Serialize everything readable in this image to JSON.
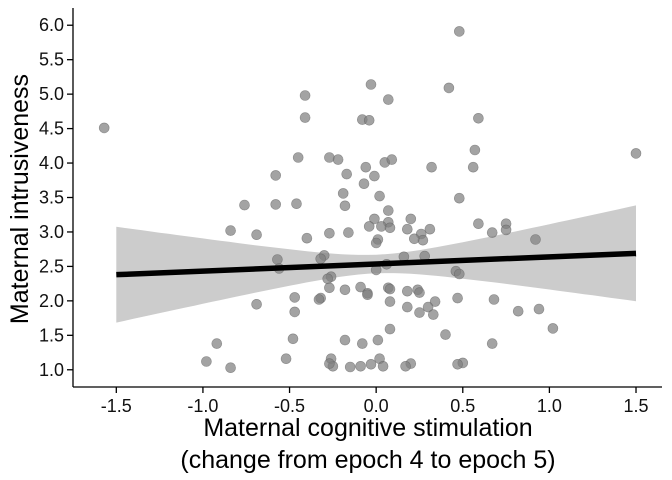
{
  "chart_data": {
    "type": "scatter",
    "xlabel_line1": "Maternal cognitive stimulation",
    "xlabel_line2": "(change from epoch 4 to epoch 5)",
    "ylabel": "Maternal intrusiveness",
    "xlim": [
      -1.75,
      1.65
    ],
    "ylim": [
      0.75,
      6.25
    ],
    "x_ticks": [
      -1.5,
      -1.0,
      -0.5,
      0.0,
      0.5,
      1.0,
      1.5
    ],
    "x_tick_labels": [
      "-1.5",
      "-1.0",
      "-0.5",
      "0.0",
      "0.5",
      "1.0",
      "1.5"
    ],
    "y_ticks": [
      1.0,
      1.5,
      2.0,
      2.5,
      3.0,
      3.5,
      4.0,
      4.5,
      5.0,
      5.5,
      6.0
    ],
    "y_tick_labels": [
      "1.0",
      "1.5",
      "2.0",
      "2.5",
      "3.0",
      "3.5",
      "4.0",
      "4.5",
      "5.0",
      "5.5",
      "6.0"
    ],
    "grid": false,
    "point_color": "#7f7f7f",
    "line_color": "#000000",
    "band_color": "#cccccc",
    "regression": {
      "x": [
        -1.5,
        1.5
      ],
      "y": [
        2.38,
        2.69
      ],
      "ci_lower": [
        1.69,
        1.99
      ],
      "ci_upper": [
        3.08,
        3.39
      ],
      "ci_mid_x": 0.0,
      "ci_mid_lower": [
        2.41
      ],
      "ci_mid_upper": [
        2.68
      ]
    },
    "points": [
      {
        "x": -1.57,
        "y": 4.51
      },
      {
        "x": 1.5,
        "y": 4.14
      },
      {
        "x": 0.48,
        "y": 5.91
      },
      {
        "x": -0.03,
        "y": 5.14
      },
      {
        "x": 0.42,
        "y": 5.09
      },
      {
        "x": -0.41,
        "y": 4.98
      },
      {
        "x": 0.07,
        "y": 4.92
      },
      {
        "x": -0.41,
        "y": 4.66
      },
      {
        "x": -0.08,
        "y": 4.63
      },
      {
        "x": -0.04,
        "y": 4.62
      },
      {
        "x": 0.59,
        "y": 4.65
      },
      {
        "x": 0.57,
        "y": 4.19
      },
      {
        "x": -0.45,
        "y": 4.08
      },
      {
        "x": -0.27,
        "y": 4.08
      },
      {
        "x": -0.22,
        "y": 4.05
      },
      {
        "x": 0.05,
        "y": 4.01
      },
      {
        "x": 0.09,
        "y": 4.05
      },
      {
        "x": -0.06,
        "y": 3.94
      },
      {
        "x": 0.32,
        "y": 3.94
      },
      {
        "x": 0.56,
        "y": 3.94
      },
      {
        "x": -0.17,
        "y": 3.84
      },
      {
        "x": -0.58,
        "y": 3.82
      },
      {
        "x": -0.01,
        "y": 3.81
      },
      {
        "x": -0.07,
        "y": 3.7
      },
      {
        "x": -0.19,
        "y": 3.56
      },
      {
        "x": 0.02,
        "y": 3.52
      },
      {
        "x": 0.48,
        "y": 3.49
      },
      {
        "x": -0.76,
        "y": 3.39
      },
      {
        "x": -0.58,
        "y": 3.4
      },
      {
        "x": -0.46,
        "y": 3.41
      },
      {
        "x": -0.18,
        "y": 3.38
      },
      {
        "x": 0.07,
        "y": 3.31
      },
      {
        "x": -0.01,
        "y": 3.19
      },
      {
        "x": 0.2,
        "y": 3.19
      },
      {
        "x": 0.07,
        "y": 3.14
      },
      {
        "x": 0.03,
        "y": 3.08
      },
      {
        "x": -0.04,
        "y": 3.08
      },
      {
        "x": 0.08,
        "y": 3.06
      },
      {
        "x": 0.18,
        "y": 3.04
      },
      {
        "x": 0.31,
        "y": 3.04
      },
      {
        "x": 0.26,
        "y": 2.97
      },
      {
        "x": 0.59,
        "y": 3.12
      },
      {
        "x": 0.75,
        "y": 3.12
      },
      {
        "x": 0.75,
        "y": 3.03
      },
      {
        "x": 0.67,
        "y": 2.99
      },
      {
        "x": -0.84,
        "y": 3.02
      },
      {
        "x": -0.27,
        "y": 2.98
      },
      {
        "x": -0.16,
        "y": 2.99
      },
      {
        "x": -0.4,
        "y": 2.91
      },
      {
        "x": -0.69,
        "y": 2.96
      },
      {
        "x": 0.01,
        "y": 2.89
      },
      {
        "x": 0.0,
        "y": 2.84
      },
      {
        "x": 0.27,
        "y": 2.88
      },
      {
        "x": 0.22,
        "y": 2.9
      },
      {
        "x": 0.92,
        "y": 2.89
      },
      {
        "x": -0.3,
        "y": 2.66
      },
      {
        "x": -0.32,
        "y": 2.61
      },
      {
        "x": -0.57,
        "y": 2.6
      },
      {
        "x": -0.56,
        "y": 2.47
      },
      {
        "x": 0.06,
        "y": 2.53
      },
      {
        "x": 0.16,
        "y": 2.64
      },
      {
        "x": 0.28,
        "y": 2.65
      },
      {
        "x": 0.0,
        "y": 2.45
      },
      {
        "x": 0.46,
        "y": 2.43
      },
      {
        "x": 0.48,
        "y": 2.39
      },
      {
        "x": -0.26,
        "y": 2.35
      },
      {
        "x": -0.28,
        "y": 2.32
      },
      {
        "x": -0.09,
        "y": 2.2
      },
      {
        "x": -0.05,
        "y": 2.11
      },
      {
        "x": -0.18,
        "y": 2.16
      },
      {
        "x": -0.27,
        "y": 2.19
      },
      {
        "x": 0.07,
        "y": 2.19
      },
      {
        "x": 0.08,
        "y": 2.17
      },
      {
        "x": 0.18,
        "y": 2.14
      },
      {
        "x": 0.24,
        "y": 2.16
      },
      {
        "x": 0.25,
        "y": 2.12
      },
      {
        "x": 0.47,
        "y": 2.04
      },
      {
        "x": 0.68,
        "y": 2.02
      },
      {
        "x": 0.34,
        "y": 1.99
      },
      {
        "x": 0.3,
        "y": 1.91
      },
      {
        "x": 0.18,
        "y": 1.91
      },
      {
        "x": 0.08,
        "y": 1.99
      },
      {
        "x": -0.05,
        "y": 2.09
      },
      {
        "x": -0.32,
        "y": 2.04
      },
      {
        "x": -0.33,
        "y": 2.02
      },
      {
        "x": -0.47,
        "y": 2.05
      },
      {
        "x": -0.69,
        "y": 1.95
      },
      {
        "x": -0.47,
        "y": 1.84
      },
      {
        "x": 0.25,
        "y": 1.83
      },
      {
        "x": 0.33,
        "y": 1.8
      },
      {
        "x": 0.82,
        "y": 1.85
      },
      {
        "x": 0.94,
        "y": 1.88
      },
      {
        "x": 1.02,
        "y": 1.6
      },
      {
        "x": 0.08,
        "y": 1.59
      },
      {
        "x": 0.4,
        "y": 1.51
      },
      {
        "x": -0.48,
        "y": 1.45
      },
      {
        "x": -0.18,
        "y": 1.43
      },
      {
        "x": 0.01,
        "y": 1.43
      },
      {
        "x": -0.08,
        "y": 1.38
      },
      {
        "x": -0.92,
        "y": 1.38
      },
      {
        "x": 0.67,
        "y": 1.38
      },
      {
        "x": -0.52,
        "y": 1.16
      },
      {
        "x": -0.26,
        "y": 1.16
      },
      {
        "x": -0.98,
        "y": 1.12
      },
      {
        "x": 0.2,
        "y": 1.09
      },
      {
        "x": 0.02,
        "y": 1.16
      },
      {
        "x": -0.03,
        "y": 1.08
      },
      {
        "x": 0.04,
        "y": 1.05
      },
      {
        "x": -0.09,
        "y": 1.05
      },
      {
        "x": -0.15,
        "y": 1.04
      },
      {
        "x": -0.25,
        "y": 1.05
      },
      {
        "x": -0.27,
        "y": 1.09
      },
      {
        "x": 0.17,
        "y": 1.05
      },
      {
        "x": 0.5,
        "y": 1.1
      },
      {
        "x": 0.47,
        "y": 1.08
      },
      {
        "x": -0.84,
        "y": 1.03
      }
    ]
  }
}
